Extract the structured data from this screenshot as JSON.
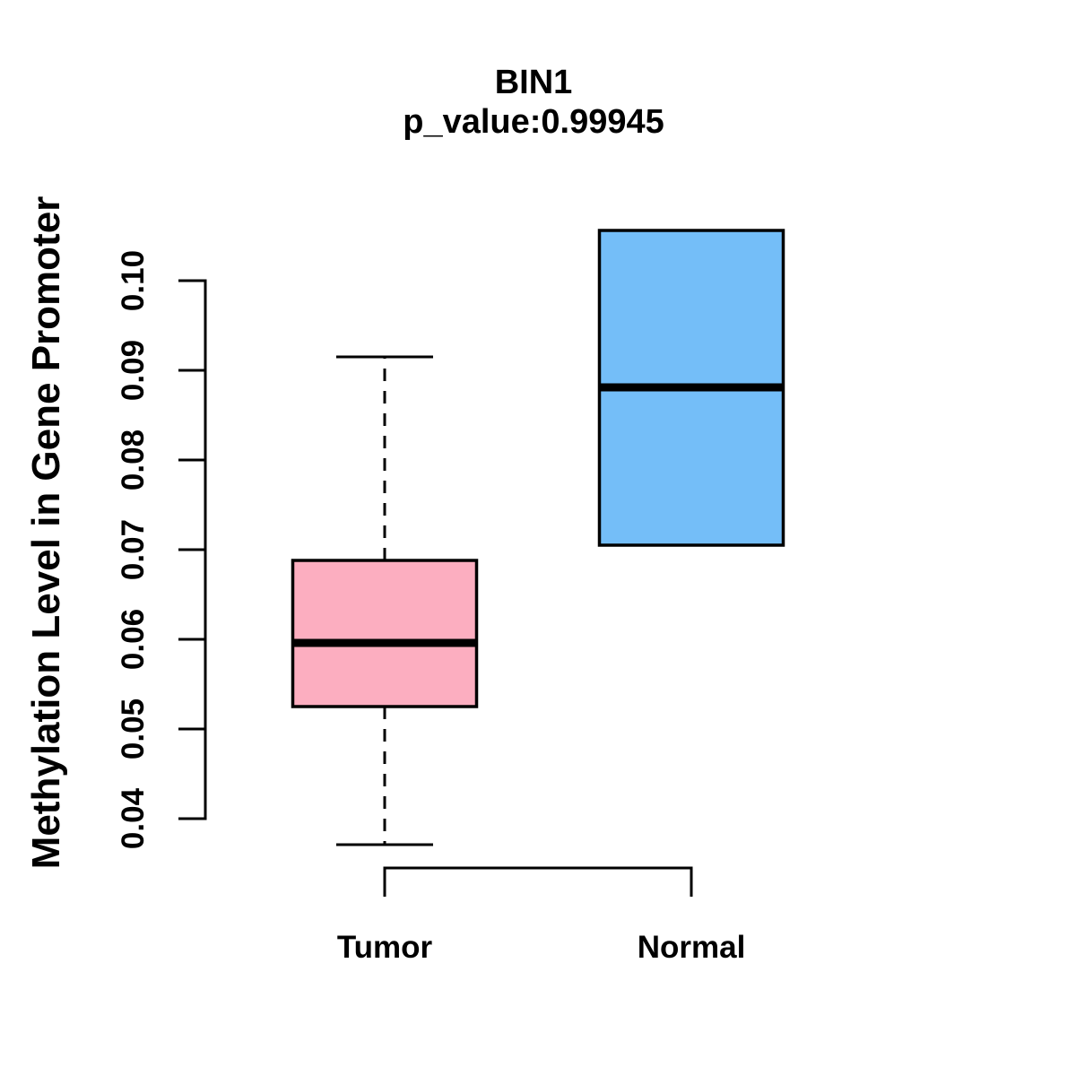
{
  "chart_data": {
    "type": "boxplot",
    "title": "BIN1",
    "subtitle": "p_value:0.99945",
    "ylabel": "Methylation Level in Gene Promoter",
    "xlabel": "",
    "categories": [
      "Tumor",
      "Normal"
    ],
    "y_ticks": [
      "0.04",
      "0.05",
      "0.06",
      "0.07",
      "0.08",
      "0.09",
      "0.10"
    ],
    "ylim": [
      0.035,
      0.107
    ],
    "axis_range": [
      0.04,
      0.1
    ],
    "grid": "off",
    "legend": "none",
    "series": [
      {
        "name": "Tumor",
        "color": "#FCAEC0",
        "border_color": "#000000",
        "whisker_low": 0.0371,
        "q1": 0.0525,
        "median": 0.0596,
        "q3": 0.0688,
        "whisker_high": 0.0915,
        "whisker_style": "dashed",
        "has_visible_whiskers": true
      },
      {
        "name": "Normal",
        "color": "#74BEF8",
        "border_color": "#000000",
        "whisker_low": 0.0705,
        "q1": 0.0705,
        "median": 0.0881,
        "q3": 0.1056,
        "whisker_high": 0.1056,
        "whisker_style": "dashed",
        "has_visible_whiskers": false
      }
    ]
  }
}
